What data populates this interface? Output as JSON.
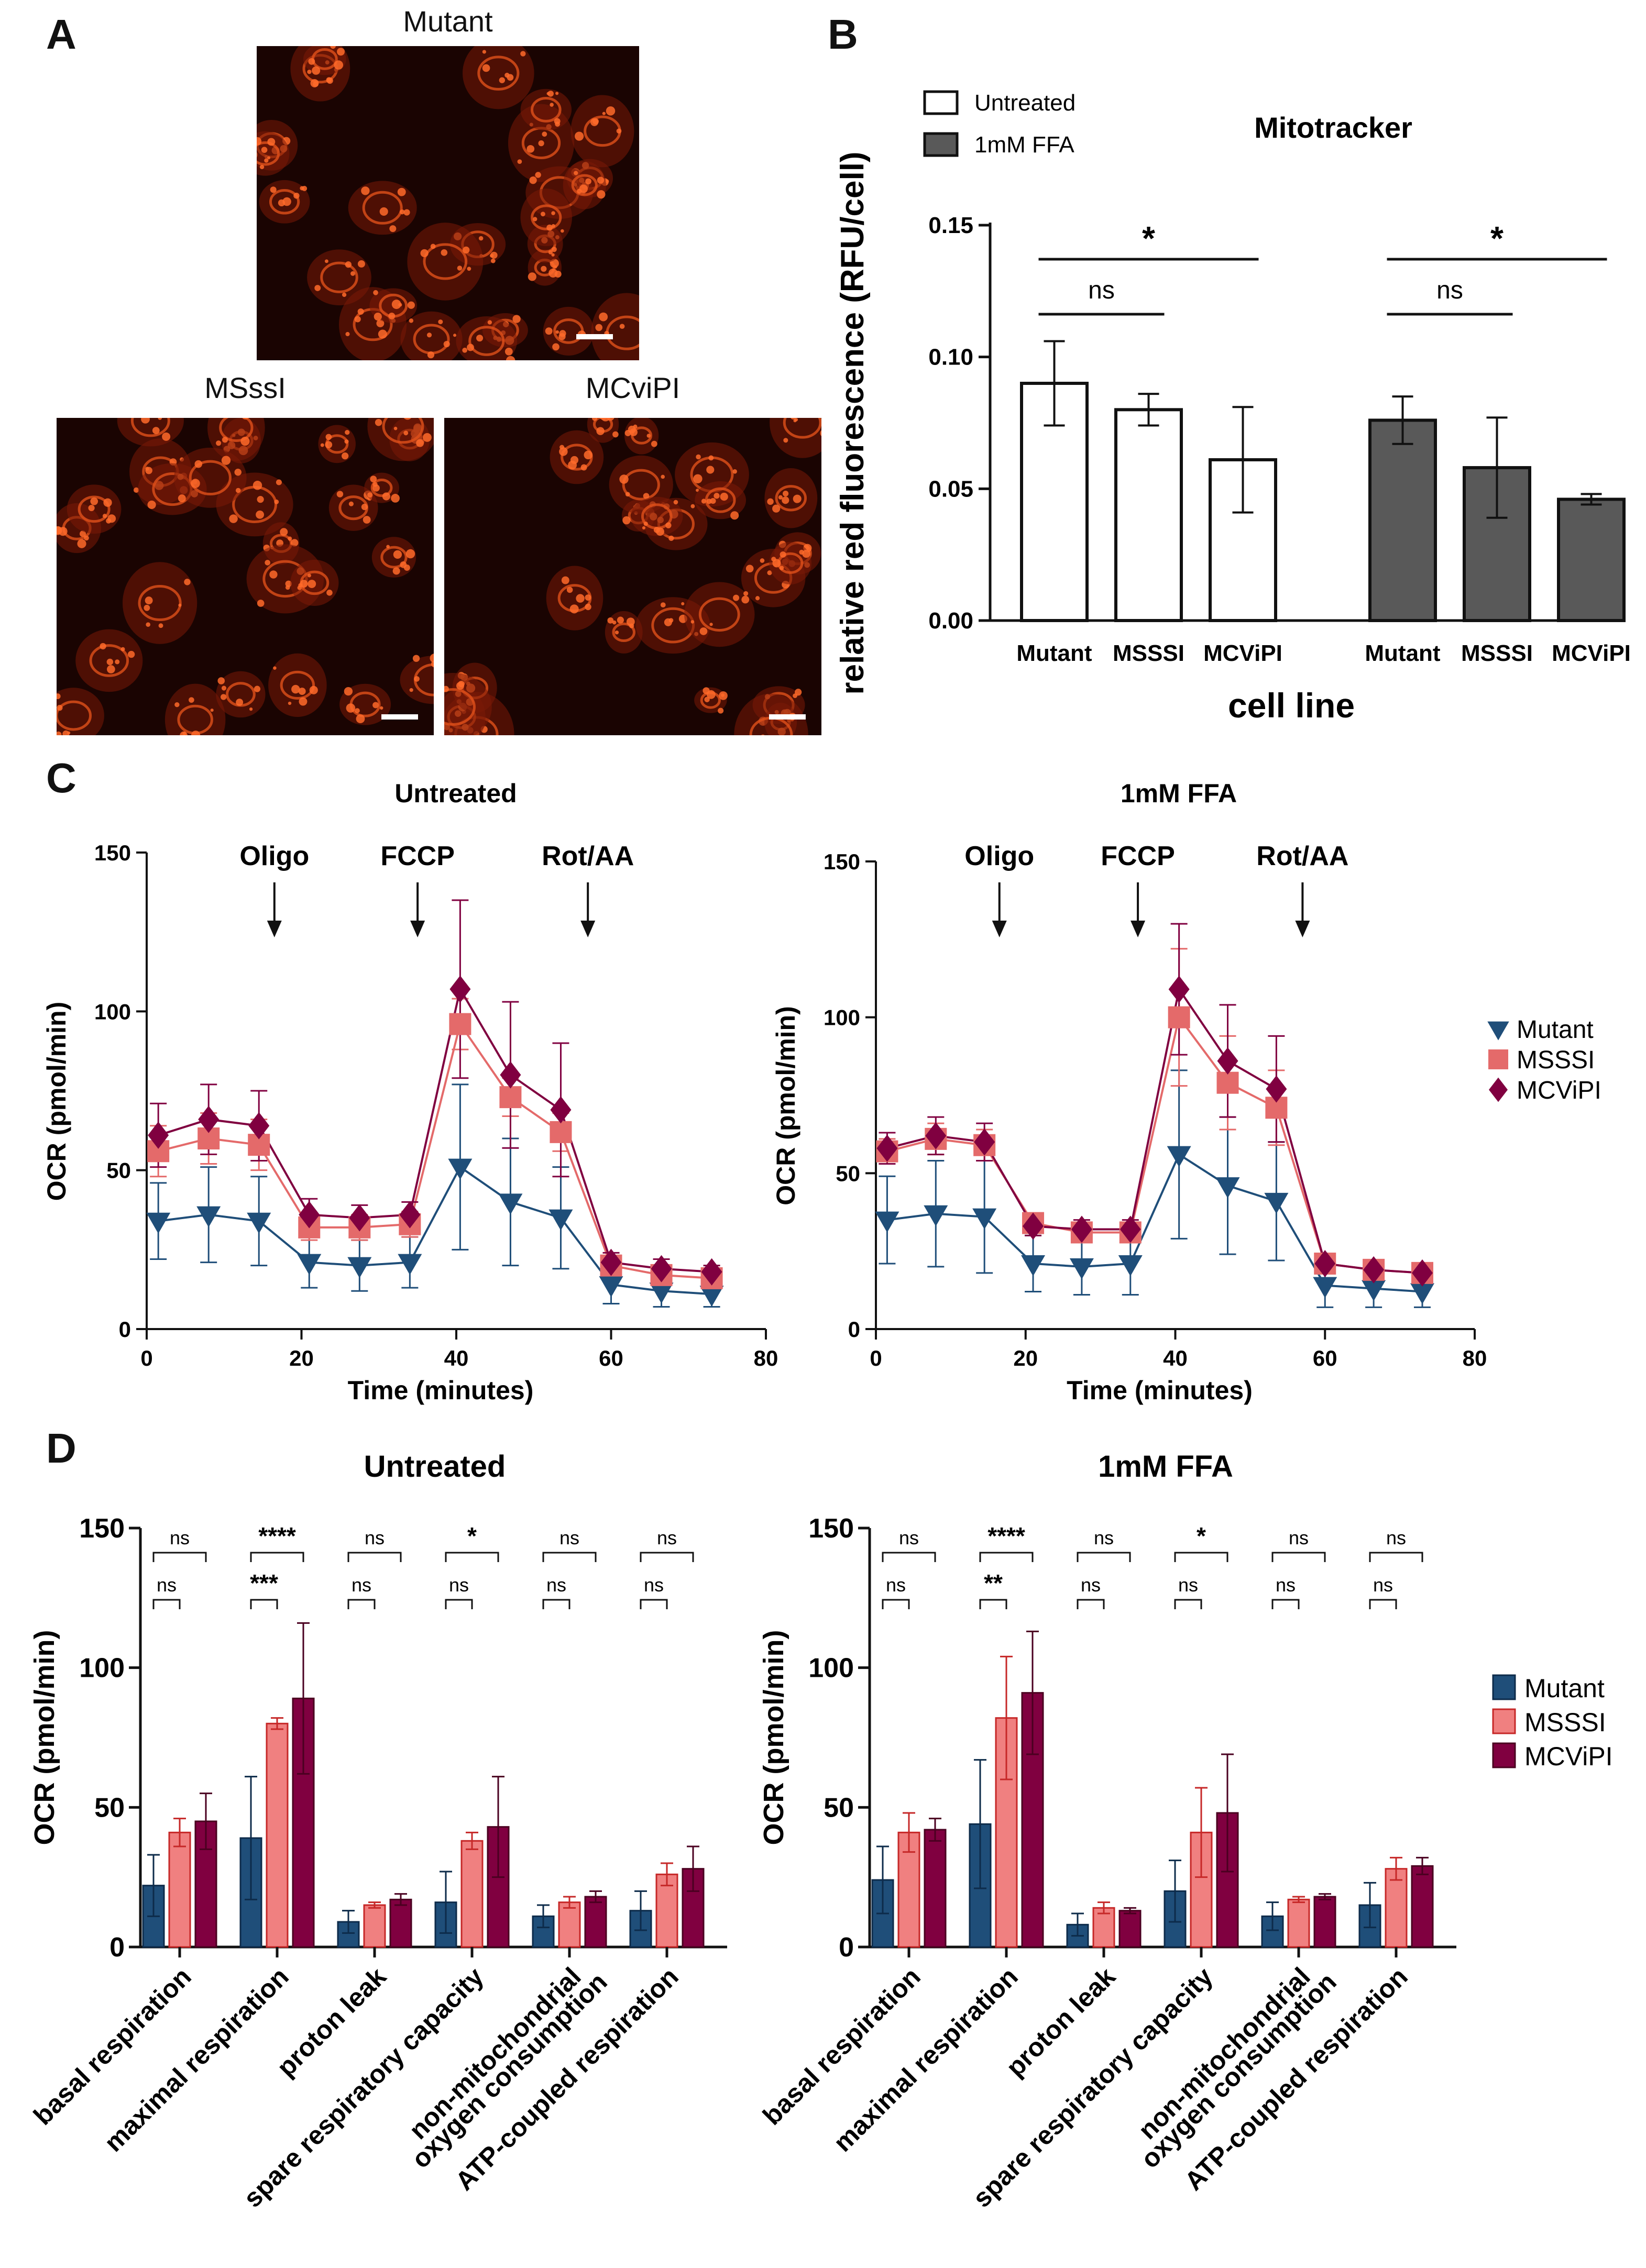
{
  "panel_labels": [
    "A",
    "B",
    "C",
    "D"
  ],
  "panel_a": {
    "images": [
      {
        "title": "Mutant"
      },
      {
        "title": "MSssI"
      },
      {
        "title": "MCviPI"
      }
    ]
  },
  "chart_data": [
    {
      "panel": "B",
      "type": "bar",
      "title": "Mitotracker",
      "xlabel": "cell line",
      "ylabel": "relative red fluorescence (RFU/cell)",
      "ylim": [
        0,
        0.15
      ],
      "yticks": [
        "0.00",
        "0.05",
        "0.10",
        "0.15"
      ],
      "legend": [
        {
          "name": "Untreated",
          "color": "#ffffff"
        },
        {
          "name": "1mM FFA",
          "color": "#595959"
        }
      ],
      "groups": [
        {
          "name": "Untreated",
          "categories": [
            "Mutant",
            "MSSSI",
            "MCViPI"
          ],
          "values": [
            0.09,
            0.08,
            0.061
          ],
          "errors": [
            0.016,
            0.006,
            0.02
          ]
        },
        {
          "name": "1mM FFA",
          "categories": [
            "Mutant",
            "MSSSI",
            "MCViPI"
          ],
          "values": [
            0.076,
            0.058,
            0.046
          ],
          "errors": [
            0.009,
            0.019,
            0.002
          ]
        }
      ],
      "significance": [
        {
          "group": 0,
          "from": 0,
          "to": 2,
          "label": "*"
        },
        {
          "group": 0,
          "from": 0,
          "to": 1,
          "label": "ns"
        },
        {
          "group": 1,
          "from": 0,
          "to": 2,
          "label": "*"
        },
        {
          "group": 1,
          "from": 0,
          "to": 1,
          "label": "ns"
        }
      ]
    },
    {
      "panel": "C",
      "type": "line",
      "ylabel": "OCR (pmol/min)",
      "xlabel": "Time (minutes)",
      "xlim": [
        0,
        80
      ],
      "ylim": [
        0,
        150
      ],
      "xticks": [
        0,
        20,
        40,
        60,
        80
      ],
      "yticks": [
        0,
        50,
        100,
        150
      ],
      "x": [
        1.5,
        8,
        14.5,
        21,
        27.5,
        34,
        40.5,
        47,
        53.5,
        60,
        66.5,
        73
      ],
      "injections": [
        {
          "label": "Oligo",
          "time": 16.5
        },
        {
          "label": "FCCP",
          "time": 35
        },
        {
          "label": "Rot/AA",
          "time": 57
        }
      ],
      "legend": [
        "Mutant",
        "MSSSI",
        "MCViPI"
      ],
      "plots": [
        {
          "title": "Untreated",
          "series": [
            {
              "name": "Mutant",
              "color": "#1f4e79",
              "marker": "triangle-down",
              "values": [
                34,
                36,
                34,
                21,
                20,
                21,
                51,
                40,
                35,
                14,
                12,
                11
              ],
              "errors": [
                12,
                15,
                14,
                8,
                8,
                8,
                26,
                20,
                16,
                6,
                5,
                4
              ]
            },
            {
              "name": "MSSSI",
              "color": "#e46a6a",
              "marker": "square",
              "values": [
                56,
                60,
                58,
                32,
                32,
                33,
                96,
                73,
                62,
                20,
                17,
                16
              ],
              "errors": [
                8,
                8,
                8,
                4,
                4,
                4,
                8,
                6,
                6,
                3,
                2,
                2
              ]
            },
            {
              "name": "MCViPI",
              "color": "#800040",
              "marker": "diamond",
              "values": [
                61,
                66,
                64,
                36,
                35,
                36,
                107,
                80,
                69,
                21,
                19,
                18
              ],
              "errors": [
                10,
                11,
                11,
                5,
                4,
                4,
                28,
                23,
                21,
                3,
                3,
                2
              ]
            }
          ]
        },
        {
          "title": "1mM FFA",
          "series": [
            {
              "name": "Mutant",
              "color": "#1f4e79",
              "marker": "triangle-down",
              "values": [
                35,
                37,
                36,
                21,
                20,
                21,
                56,
                46,
                41,
                14,
                13,
                12
              ],
              "errors": [
                14,
                17,
                18,
                9,
                9,
                10,
                27,
                22,
                19,
                7,
                6,
                5
              ]
            },
            {
              "name": "MSSSI",
              "color": "#e46a6a",
              "marker": "square",
              "values": [
                57,
                61,
                59,
                34,
                31,
                31,
                100,
                79,
                71,
                21,
                19,
                18
              ],
              "errors": [
                4,
                5,
                5,
                3,
                3,
                3,
                22,
                15,
                12,
                2,
                2,
                2
              ]
            },
            {
              "name": "MCViPI",
              "color": "#800040",
              "marker": "diamond",
              "values": [
                58,
                62,
                60,
                33,
                32,
                32,
                109,
                86,
                77,
                21,
                19,
                18
              ],
              "errors": [
                5,
                6,
                6,
                3,
                3,
                3,
                21,
                18,
                17,
                2,
                2,
                2
              ]
            }
          ]
        }
      ]
    },
    {
      "panel": "D",
      "type": "bar",
      "ylabel": "OCR (pmol/min)",
      "ylim": [
        0,
        150
      ],
      "yticks": [
        0,
        50,
        100,
        150
      ],
      "categories": [
        "basal respiration",
        "maximal respiration",
        "proton leak",
        "spare respiratory capacity",
        "non-mitochondrial\noxygen consumption",
        "ATP-coupled respiration"
      ],
      "legend": [
        "Mutant",
        "MSSSI",
        "MCViPI"
      ],
      "colors": [
        "#1f4e79",
        "#f08080",
        "#800040"
      ],
      "edge_colors": [
        "#0d2b4a",
        "#c62828",
        "#4a0020"
      ],
      "plots": [
        {
          "title": "Untreated",
          "series": [
            {
              "name": "Mutant",
              "values": [
                22,
                39,
                9,
                16,
                11,
                13
              ],
              "errors": [
                11,
                22,
                4,
                11,
                4,
                7
              ]
            },
            {
              "name": "MSSSI",
              "values": [
                41,
                80,
                15,
                38,
                16,
                26
              ],
              "errors": [
                5,
                2,
                1,
                3,
                2,
                4
              ]
            },
            {
              "name": "MCViPI",
              "values": [
                45,
                89,
                17,
                43,
                18,
                28
              ],
              "errors": [
                10,
                27,
                2,
                18,
                2,
                8
              ]
            }
          ],
          "sig_top": [
            "ns",
            "****",
            "ns",
            "*",
            "ns",
            "ns"
          ],
          "sig_bottom": [
            "ns",
            "***",
            "ns",
            "ns",
            "ns",
            "ns"
          ]
        },
        {
          "title": "1mM FFA",
          "series": [
            {
              "name": "Mutant",
              "values": [
                24,
                44,
                8,
                20,
                11,
                15
              ],
              "errors": [
                12,
                23,
                4,
                11,
                5,
                8
              ]
            },
            {
              "name": "MSSSI",
              "values": [
                41,
                82,
                14,
                41,
                17,
                28
              ],
              "errors": [
                7,
                22,
                2,
                16,
                1,
                4
              ]
            },
            {
              "name": "MCViPI",
              "values": [
                42,
                91,
                13,
                48,
                18,
                29
              ],
              "errors": [
                4,
                22,
                1,
                21,
                1,
                3
              ]
            }
          ],
          "sig_top": [
            "ns",
            "****",
            "ns",
            "*",
            "ns",
            "ns"
          ],
          "sig_bottom": [
            "ns",
            "**",
            "ns",
            "ns",
            "ns",
            "ns"
          ]
        }
      ]
    }
  ]
}
